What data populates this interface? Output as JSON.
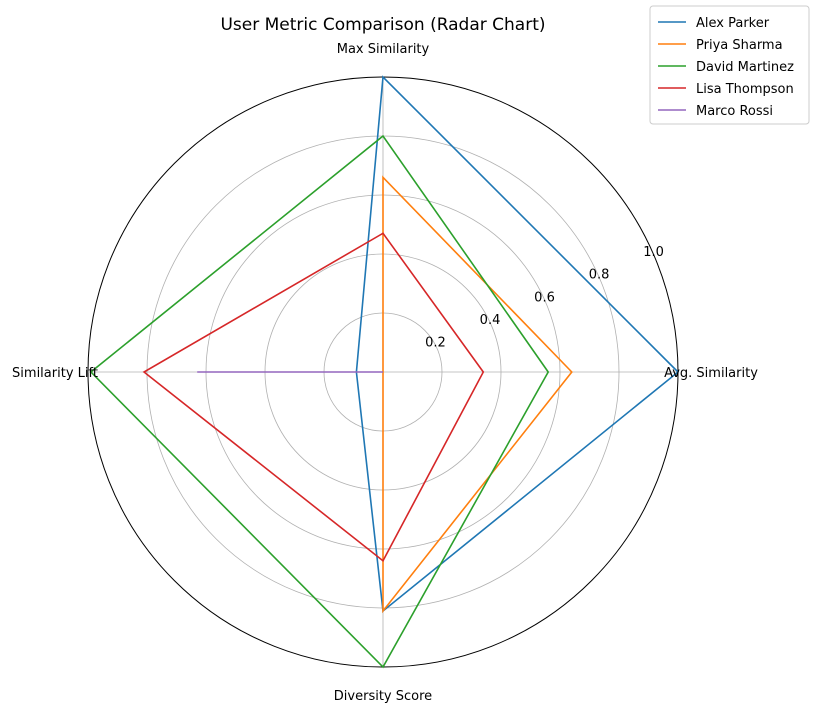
{
  "chart_data": {
    "type": "radar",
    "title": "User Metric Comparison (Radar Chart)",
    "axes": [
      "Avg. Similarity",
      "Max Similarity",
      "Similarity Lift",
      "Diversity Score"
    ],
    "rlim": [
      0,
      1.0
    ],
    "rticks": [
      0.2,
      0.4,
      0.6,
      0.8,
      1.0
    ],
    "rtick_labels": [
      "0.2",
      "0.4",
      "0.6",
      "0.8",
      "1.0"
    ],
    "grid": true,
    "legend_position": "top-right",
    "series": [
      {
        "name": "Alex Parker",
        "color": "#1f77b4",
        "values": [
          1.0,
          1.0,
          0.09,
          0.81
        ]
      },
      {
        "name": "Priya Sharma",
        "color": "#ff7f0e",
        "values": [
          0.64,
          0.66,
          0.0,
          0.81
        ]
      },
      {
        "name": "David Martinez",
        "color": "#2ca02c",
        "values": [
          0.56,
          0.8,
          0.99,
          1.0
        ]
      },
      {
        "name": "Lisa Thompson",
        "color": "#d62728",
        "values": [
          0.34,
          0.47,
          0.81,
          0.64
        ]
      },
      {
        "name": "Marco Rossi",
        "color": "#9467bd",
        "values": [
          0.0,
          0.0,
          0.63,
          0.0
        ]
      }
    ]
  }
}
